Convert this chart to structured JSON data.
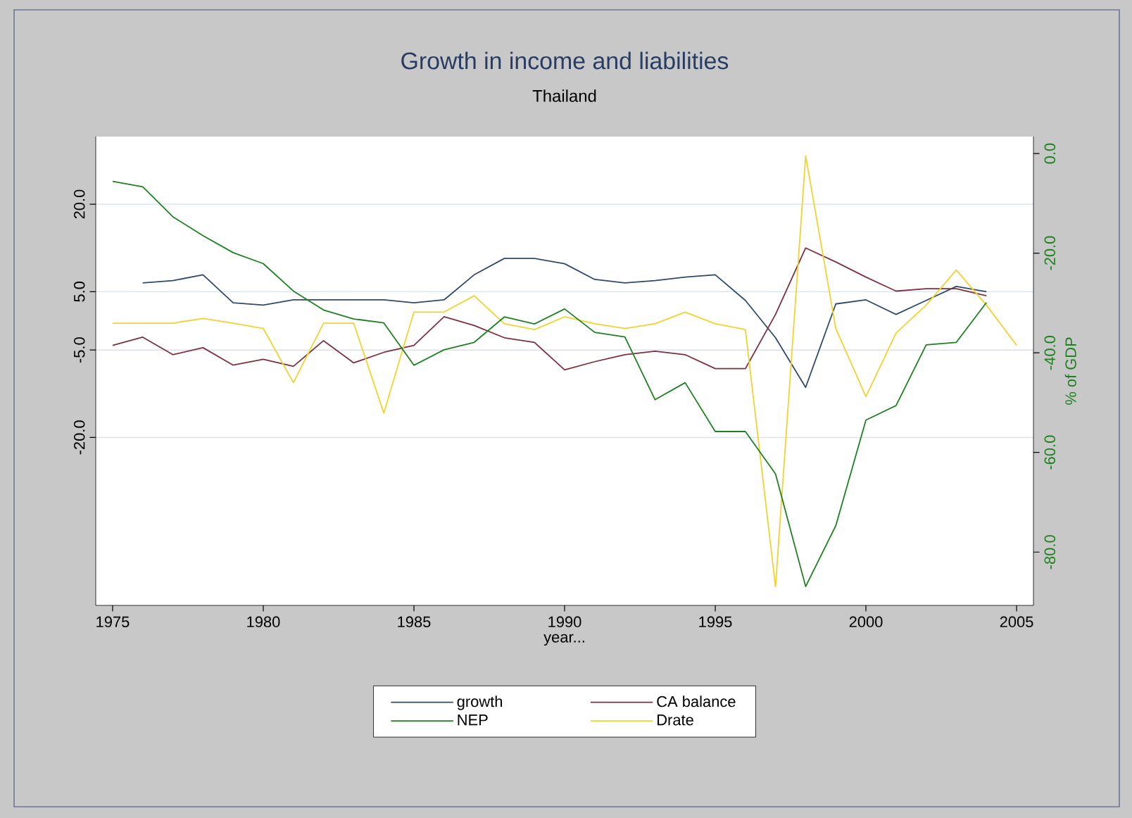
{
  "chart_data": {
    "type": "line",
    "title": "Growth in income and liabilities",
    "subtitle": "Thailand",
    "xlabel": "year...",
    "y2label": "% of GDP",
    "x": [
      1975,
      1976,
      1977,
      1978,
      1979,
      1980,
      1981,
      1982,
      1983,
      1984,
      1985,
      1986,
      1987,
      1988,
      1989,
      1990,
      1991,
      1992,
      1993,
      1994,
      1995,
      1996,
      1997,
      1998,
      1999,
      2000,
      2001,
      2002,
      2003,
      2004,
      2005
    ],
    "series": [
      {
        "name": "growth",
        "color": "#2e4a6e",
        "values": [
          null,
          6.5,
          6.9,
          7.9,
          3.1,
          2.7,
          3.6,
          3.6,
          3.6,
          3.6,
          3.1,
          3.6,
          7.9,
          10.7,
          10.7,
          9.8,
          7.1,
          6.5,
          6.9,
          7.5,
          7.9,
          3.5,
          -2.9,
          -11.4,
          2.9,
          3.6,
          1.1,
          3.5,
          5.9,
          5.0,
          null
        ]
      },
      {
        "name": "CA balance",
        "color": "#7e3040",
        "values": [
          -4.2,
          -2.8,
          -5.8,
          -4.6,
          -7.6,
          -6.6,
          -7.8,
          -3.4,
          -7.2,
          -5.4,
          -4.2,
          0.7,
          -0.8,
          -2.9,
          -3.7,
          -8.4,
          -7.0,
          -5.8,
          -5.2,
          -5.8,
          -8.2,
          -8.2,
          1.1,
          12.5,
          10.1,
          7.5,
          5.1,
          5.5,
          5.5,
          4.3,
          null
        ]
      },
      {
        "name": "NEP",
        "color": "#1e8020",
        "axis": "y2",
        "values": [
          -5.6,
          -6.7,
          -12.7,
          -16.5,
          -19.9,
          -22.1,
          -27.6,
          -31.4,
          -33.2,
          -34.0,
          -42.5,
          -39.4,
          -37.9,
          -32.8,
          -34.2,
          -31.2,
          -35.9,
          -36.8,
          -49.4,
          -46.0,
          -55.8,
          -55.8,
          -64.3,
          -86.9,
          -74.7,
          -53.5,
          -50.6,
          -38.4,
          -37.9,
          -29.9,
          null
        ]
      },
      {
        "name": "Drate",
        "color": "#f2d230",
        "values": [
          -0.4,
          -0.4,
          -0.4,
          0.4,
          -0.4,
          -1.3,
          -10.6,
          -0.4,
          -0.4,
          -15.8,
          1.5,
          1.5,
          4.3,
          -0.5,
          -1.5,
          0.7,
          -0.5,
          -1.3,
          -0.5,
          1.5,
          -0.5,
          -1.5,
          -45.6,
          28.3,
          -1.3,
          -13.0,
          -2.1,
          2.7,
          8.7,
          2.7,
          -4.2
        ]
      }
    ],
    "xlim": [
      1974.44,
      2005.56
    ],
    "xticks": [
      1975,
      1980,
      1985,
      1990,
      1995,
      2000,
      2005
    ],
    "ylim": [
      -48.8,
      31.6
    ],
    "yticks": [
      {
        "value": -20,
        "label": "-20.0"
      },
      {
        "value": -5,
        "label": "-5.0"
      },
      {
        "value": 5,
        "label": "5.0"
      },
      {
        "value": 20,
        "label": "20.0"
      }
    ],
    "y2lim": [
      -90.7,
      3.4
    ],
    "y2ticks": [
      {
        "value": -80,
        "label": "-80.0"
      },
      {
        "value": -60,
        "label": "-60.0"
      },
      {
        "value": -40,
        "label": "-40.0"
      },
      {
        "value": -20,
        "label": "-20.0"
      },
      {
        "value": 0,
        "label": "0.0"
      }
    ],
    "grid": "y",
    "legend": "bottom",
    "line_style": "solid",
    "marker": "none"
  }
}
